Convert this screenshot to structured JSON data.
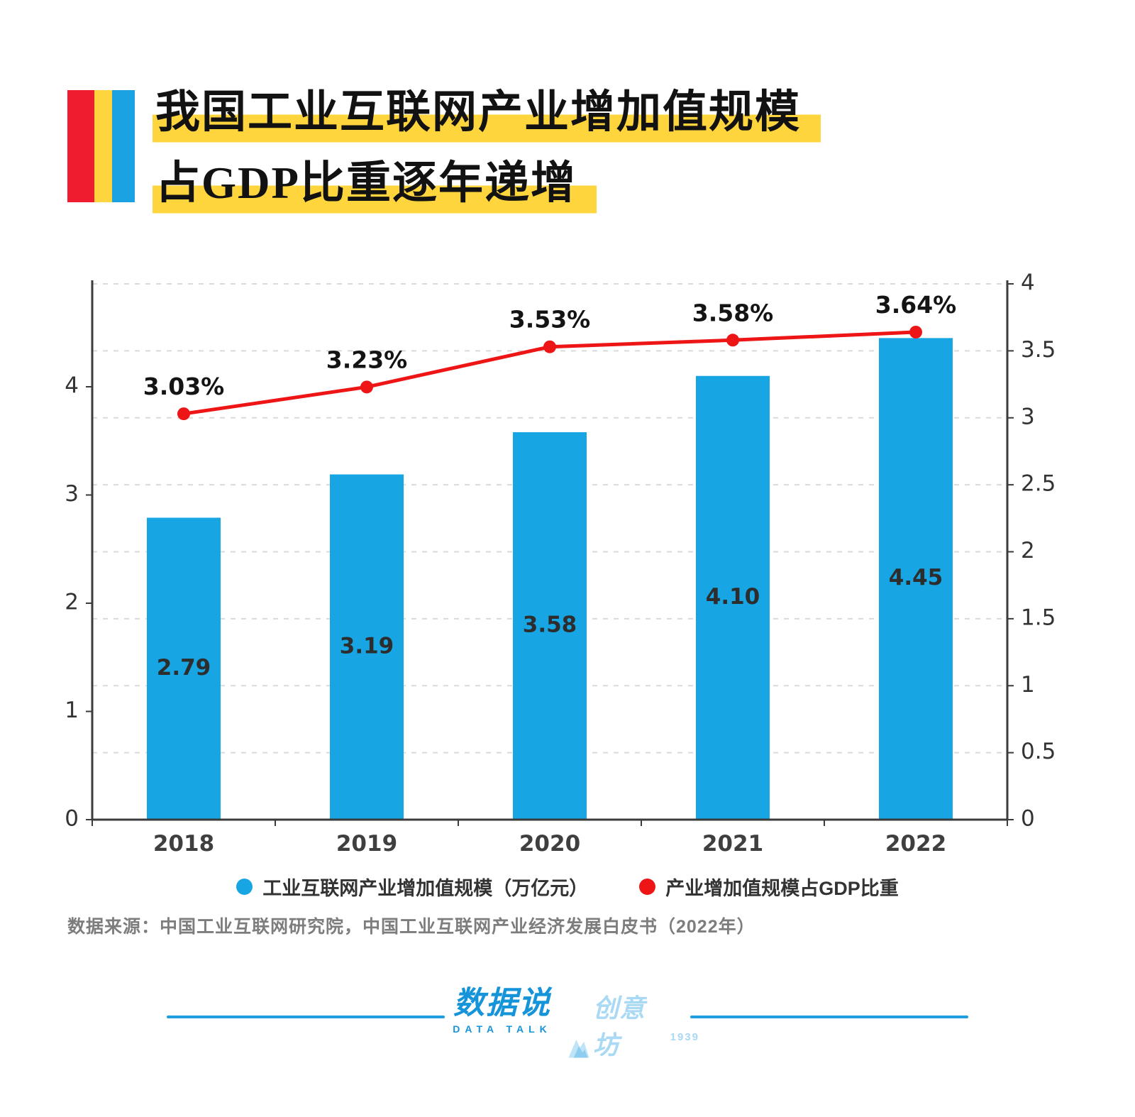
{
  "header": {
    "title_line1": "我国工业互联网产业增加值规模",
    "title_line2": "占GDP比重逐年递增",
    "highlight_color": "#ffd53e",
    "accent_colors": {
      "red": "#ee1c2e",
      "yellow": "#ffd53e",
      "blue": "#1ba2e3"
    }
  },
  "chart_data": {
    "type": "bar",
    "subtype": "bar+line dual axis",
    "categories": [
      "2018",
      "2019",
      "2020",
      "2021",
      "2022"
    ],
    "series": [
      {
        "name": "工业互联网产业增加值规模（万亿元）",
        "type": "bar",
        "axis": "left",
        "color": "#17a6e3",
        "values": [
          2.79,
          3.19,
          3.58,
          4.1,
          4.45
        ],
        "labels": [
          "2.79",
          "3.19",
          "3.58",
          "4.10",
          "4.45"
        ]
      },
      {
        "name": "产业增加值规模占GDP比重",
        "type": "line",
        "axis": "right",
        "color": "#ed1515",
        "values": [
          3.03,
          3.23,
          3.53,
          3.58,
          3.64
        ],
        "labels": [
          "3.03%",
          "3.23%",
          "3.53%",
          "3.58%",
          "3.64%"
        ]
      }
    ],
    "left_axis": {
      "min": 0,
      "max": 4,
      "ticks": [
        0,
        1,
        2,
        3,
        4
      ]
    },
    "right_axis": {
      "min": 0,
      "max": 4,
      "ticks": [
        0,
        0.5,
        1,
        1.5,
        2,
        2.5,
        3,
        3.5,
        4
      ]
    },
    "grid": "dashed horizontal",
    "legend_position": "bottom"
  },
  "legend": {
    "items": [
      {
        "color": "#17a6e3",
        "label": "工业互联网产业增加值规模（万亿元）"
      },
      {
        "color": "#ed1515",
        "label": "产业增加值规模占GDP比重"
      }
    ]
  },
  "source": "数据来源：中国工业互联网研究院，中国工业互联网产业经济发展白皮书（2022年）",
  "footer": {
    "line_color": "#1e9edd",
    "logo1_zh": "数据说",
    "logo1_en": "DATA TALK",
    "logo2_zh": "创意坊",
    "logo2_year": "1939"
  }
}
